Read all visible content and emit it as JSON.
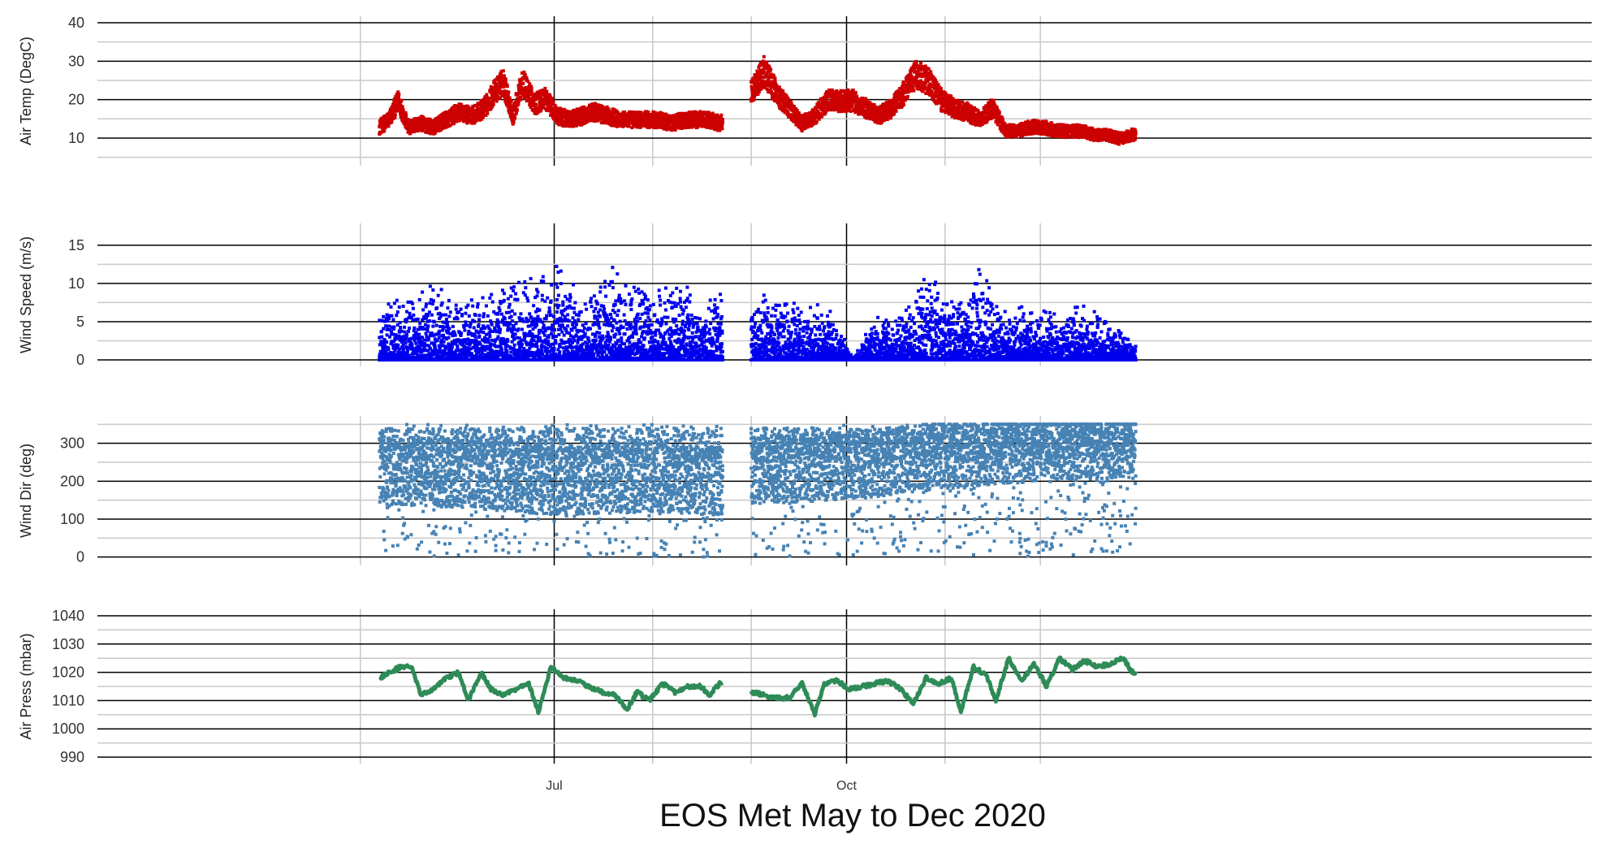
{
  "chart_data": {
    "type": "scatter",
    "title": "EOS Met May to Dec 2020",
    "x_range": [
      "2020-05-07",
      "2020-12-31"
    ],
    "x_ticks": [
      {
        "date": "2020-07-01",
        "label": "Jul"
      },
      {
        "date": "2020-10-01",
        "label": "Oct"
      }
    ],
    "x_minor_ticks": [
      "2020-05-01",
      "2020-08-01",
      "2020-09-01",
      "2020-11-01",
      "2020-12-01"
    ],
    "data_gap": [
      "2020-08-23",
      "2020-09-01"
    ],
    "grid": true,
    "panels": [
      {
        "name": "air-temp",
        "ylabel": "Air Temp (DegC)",
        "ylim": [
          4.5,
          40
        ],
        "yticks": [
          10,
          20,
          30,
          40
        ],
        "minor_yticks": [
          5,
          15,
          25,
          35
        ],
        "color": "#CC0000",
        "style": "dense-points",
        "series": [
          {
            "date": "2020-05-07",
            "value": 13
          },
          {
            "date": "2020-05-10",
            "value": 15
          },
          {
            "date": "2020-05-13",
            "value": 20
          },
          {
            "date": "2020-05-16",
            "value": 13
          },
          {
            "date": "2020-05-20",
            "value": 14
          },
          {
            "date": "2020-05-24",
            "value": 13
          },
          {
            "date": "2020-05-28",
            "value": 15
          },
          {
            "date": "2020-06-01",
            "value": 17
          },
          {
            "date": "2020-06-05",
            "value": 16
          },
          {
            "date": "2020-06-09",
            "value": 18
          },
          {
            "date": "2020-06-12",
            "value": 22
          },
          {
            "date": "2020-06-15",
            "value": 25
          },
          {
            "date": "2020-06-18",
            "value": 16
          },
          {
            "date": "2020-06-21",
            "value": 25
          },
          {
            "date": "2020-06-25",
            "value": 19
          },
          {
            "date": "2020-06-28",
            "value": 21
          },
          {
            "date": "2020-07-02",
            "value": 16
          },
          {
            "date": "2020-07-06",
            "value": 15
          },
          {
            "date": "2020-07-10",
            "value": 16
          },
          {
            "date": "2020-07-14",
            "value": 17
          },
          {
            "date": "2020-07-18",
            "value": 16
          },
          {
            "date": "2020-07-22",
            "value": 15
          },
          {
            "date": "2020-07-26",
            "value": 15
          },
          {
            "date": "2020-07-30",
            "value": 15
          },
          {
            "date": "2020-08-03",
            "value": 15
          },
          {
            "date": "2020-08-07",
            "value": 14
          },
          {
            "date": "2020-08-11",
            "value": 15
          },
          {
            "date": "2020-08-15",
            "value": 15
          },
          {
            "date": "2020-08-19",
            "value": 15
          },
          {
            "date": "2020-08-22",
            "value": 14
          },
          {
            "date": "2020-09-01",
            "value": 22
          },
          {
            "date": "2020-09-05",
            "value": 28
          },
          {
            "date": "2020-09-09",
            "value": 22
          },
          {
            "date": "2020-09-13",
            "value": 18
          },
          {
            "date": "2020-09-17",
            "value": 14
          },
          {
            "date": "2020-09-21",
            "value": 16
          },
          {
            "date": "2020-09-25",
            "value": 20
          },
          {
            "date": "2020-09-29",
            "value": 20
          },
          {
            "date": "2020-10-03",
            "value": 20
          },
          {
            "date": "2020-10-07",
            "value": 18
          },
          {
            "date": "2020-10-11",
            "value": 16
          },
          {
            "date": "2020-10-15",
            "value": 18
          },
          {
            "date": "2020-10-19",
            "value": 22
          },
          {
            "date": "2020-10-23",
            "value": 27
          },
          {
            "date": "2020-10-27",
            "value": 25
          },
          {
            "date": "2020-10-31",
            "value": 20
          },
          {
            "date": "2020-11-04",
            "value": 18
          },
          {
            "date": "2020-11-08",
            "value": 17
          },
          {
            "date": "2020-11-12",
            "value": 15
          },
          {
            "date": "2020-11-16",
            "value": 18
          },
          {
            "date": "2020-11-20",
            "value": 12
          },
          {
            "date": "2020-11-24",
            "value": 12
          },
          {
            "date": "2020-11-28",
            "value": 13
          },
          {
            "date": "2020-12-02",
            "value": 13
          },
          {
            "date": "2020-12-06",
            "value": 12
          },
          {
            "date": "2020-12-10",
            "value": 12
          },
          {
            "date": "2020-12-14",
            "value": 12
          },
          {
            "date": "2020-12-18",
            "value": 11
          },
          {
            "date": "2020-12-22",
            "value": 11
          },
          {
            "date": "2020-12-26",
            "value": 10
          },
          {
            "date": "2020-12-30",
            "value": 11
          }
        ]
      },
      {
        "name": "wind-speed",
        "ylabel": "Wind Speed (m/s)",
        "ylim": [
          0,
          17
        ],
        "yticks": [
          0,
          5,
          10,
          15
        ],
        "minor_yticks": [
          2.5,
          7.5,
          12.5
        ],
        "color": "#0000EE",
        "style": "spiky-from-zero",
        "series": [
          {
            "date": "2020-05-07",
            "value": 6
          },
          {
            "date": "2020-05-15",
            "value": 8
          },
          {
            "date": "2020-05-23",
            "value": 9
          },
          {
            "date": "2020-05-31",
            "value": 8
          },
          {
            "date": "2020-06-08",
            "value": 8
          },
          {
            "date": "2020-06-16",
            "value": 9
          },
          {
            "date": "2020-06-24",
            "value": 10
          },
          {
            "date": "2020-07-02",
            "value": 11
          },
          {
            "date": "2020-07-10",
            "value": 8
          },
          {
            "date": "2020-07-18",
            "value": 11
          },
          {
            "date": "2020-07-26",
            "value": 10
          },
          {
            "date": "2020-08-03",
            "value": 9
          },
          {
            "date": "2020-08-11",
            "value": 9
          },
          {
            "date": "2020-08-19",
            "value": 8
          },
          {
            "date": "2020-09-01",
            "value": 8
          },
          {
            "date": "2020-09-09",
            "value": 8
          },
          {
            "date": "2020-09-17",
            "value": 7
          },
          {
            "date": "2020-09-25",
            "value": 7
          },
          {
            "date": "2020-10-03",
            "value": 0.2
          },
          {
            "date": "2020-10-11",
            "value": 6
          },
          {
            "date": "2020-10-19",
            "value": 7
          },
          {
            "date": "2020-10-27",
            "value": 11
          },
          {
            "date": "2020-11-04",
            "value": 7
          },
          {
            "date": "2020-11-12",
            "value": 11
          },
          {
            "date": "2020-11-20",
            "value": 6
          },
          {
            "date": "2020-11-28",
            "value": 7
          },
          {
            "date": "2020-12-06",
            "value": 6
          },
          {
            "date": "2020-12-14",
            "value": 7
          },
          {
            "date": "2020-12-22",
            "value": 5
          },
          {
            "date": "2020-12-30",
            "value": 2
          }
        ]
      },
      {
        "name": "wind-dir",
        "ylabel": "Wind Dir (deg)",
        "ylim": [
          -5,
          355
        ],
        "yticks": [
          0,
          100,
          200,
          300
        ],
        "minor_yticks": [
          50,
          150,
          250,
          350
        ],
        "color": "#4682B4",
        "style": "scattered-band",
        "series": [
          {
            "date": "2020-05-07",
            "value": 230
          },
          {
            "date": "2020-06-01",
            "value": 220
          },
          {
            "date": "2020-07-01",
            "value": 200
          },
          {
            "date": "2020-08-01",
            "value": 210
          },
          {
            "date": "2020-08-22",
            "value": 200
          },
          {
            "date": "2020-09-01",
            "value": 230
          },
          {
            "date": "2020-10-01",
            "value": 240
          },
          {
            "date": "2020-11-01",
            "value": 270
          },
          {
            "date": "2020-12-01",
            "value": 290
          },
          {
            "date": "2020-12-30",
            "value": 300
          }
        ]
      },
      {
        "name": "air-press",
        "ylabel": "Air Press (mbar)",
        "ylim": [
          990,
          1040
        ],
        "yticks": [
          990,
          1000,
          1010,
          1020,
          1030,
          1040
        ],
        "minor_yticks": [
          995,
          1005,
          1015,
          1025,
          1035
        ],
        "color": "#2E8B57",
        "style": "line",
        "series": [
          {
            "date": "2020-05-07",
            "value": 1018
          },
          {
            "date": "2020-05-10",
            "value": 1020
          },
          {
            "date": "2020-05-14",
            "value": 1022
          },
          {
            "date": "2020-05-17",
            "value": 1022
          },
          {
            "date": "2020-05-20",
            "value": 1012
          },
          {
            "date": "2020-05-24",
            "value": 1014
          },
          {
            "date": "2020-05-28",
            "value": 1018
          },
          {
            "date": "2020-06-01",
            "value": 1020
          },
          {
            "date": "2020-06-04",
            "value": 1010
          },
          {
            "date": "2020-06-08",
            "value": 1020
          },
          {
            "date": "2020-06-11",
            "value": 1014
          },
          {
            "date": "2020-06-15",
            "value": 1012
          },
          {
            "date": "2020-06-19",
            "value": 1014
          },
          {
            "date": "2020-06-23",
            "value": 1016
          },
          {
            "date": "2020-06-26",
            "value": 1006
          },
          {
            "date": "2020-06-30",
            "value": 1022
          },
          {
            "date": "2020-07-04",
            "value": 1018
          },
          {
            "date": "2020-07-08",
            "value": 1017
          },
          {
            "date": "2020-07-12",
            "value": 1015
          },
          {
            "date": "2020-07-16",
            "value": 1013
          },
          {
            "date": "2020-07-20",
            "value": 1012
          },
          {
            "date": "2020-07-24",
            "value": 1007
          },
          {
            "date": "2020-07-27",
            "value": 1013
          },
          {
            "date": "2020-07-31",
            "value": 1010
          },
          {
            "date": "2020-08-04",
            "value": 1016
          },
          {
            "date": "2020-08-08",
            "value": 1013
          },
          {
            "date": "2020-08-12",
            "value": 1015
          },
          {
            "date": "2020-08-16",
            "value": 1015
          },
          {
            "date": "2020-08-19",
            "value": 1012
          },
          {
            "date": "2020-08-22",
            "value": 1016
          },
          {
            "date": "2020-09-01",
            "value": 1013
          },
          {
            "date": "2020-09-05",
            "value": 1012
          },
          {
            "date": "2020-09-09",
            "value": 1011
          },
          {
            "date": "2020-09-13",
            "value": 1011
          },
          {
            "date": "2020-09-17",
            "value": 1016
          },
          {
            "date": "2020-09-21",
            "value": 1005
          },
          {
            "date": "2020-09-24",
            "value": 1016
          },
          {
            "date": "2020-09-28",
            "value": 1017
          },
          {
            "date": "2020-10-02",
            "value": 1014
          },
          {
            "date": "2020-10-06",
            "value": 1015
          },
          {
            "date": "2020-10-10",
            "value": 1016
          },
          {
            "date": "2020-10-14",
            "value": 1017
          },
          {
            "date": "2020-10-18",
            "value": 1014
          },
          {
            "date": "2020-10-22",
            "value": 1009
          },
          {
            "date": "2020-10-26",
            "value": 1018
          },
          {
            "date": "2020-10-30",
            "value": 1016
          },
          {
            "date": "2020-11-03",
            "value": 1018
          },
          {
            "date": "2020-11-06",
            "value": 1006
          },
          {
            "date": "2020-11-10",
            "value": 1022
          },
          {
            "date": "2020-11-14",
            "value": 1019
          },
          {
            "date": "2020-11-17",
            "value": 1010
          },
          {
            "date": "2020-11-21",
            "value": 1025
          },
          {
            "date": "2020-11-25",
            "value": 1017
          },
          {
            "date": "2020-11-29",
            "value": 1023
          },
          {
            "date": "2020-12-03",
            "value": 1015
          },
          {
            "date": "2020-12-07",
            "value": 1025
          },
          {
            "date": "2020-12-11",
            "value": 1021
          },
          {
            "date": "2020-12-15",
            "value": 1024
          },
          {
            "date": "2020-12-19",
            "value": 1022
          },
          {
            "date": "2020-12-23",
            "value": 1023
          },
          {
            "date": "2020-12-27",
            "value": 1025
          },
          {
            "date": "2020-12-30",
            "value": 1020
          }
        ]
      }
    ]
  }
}
